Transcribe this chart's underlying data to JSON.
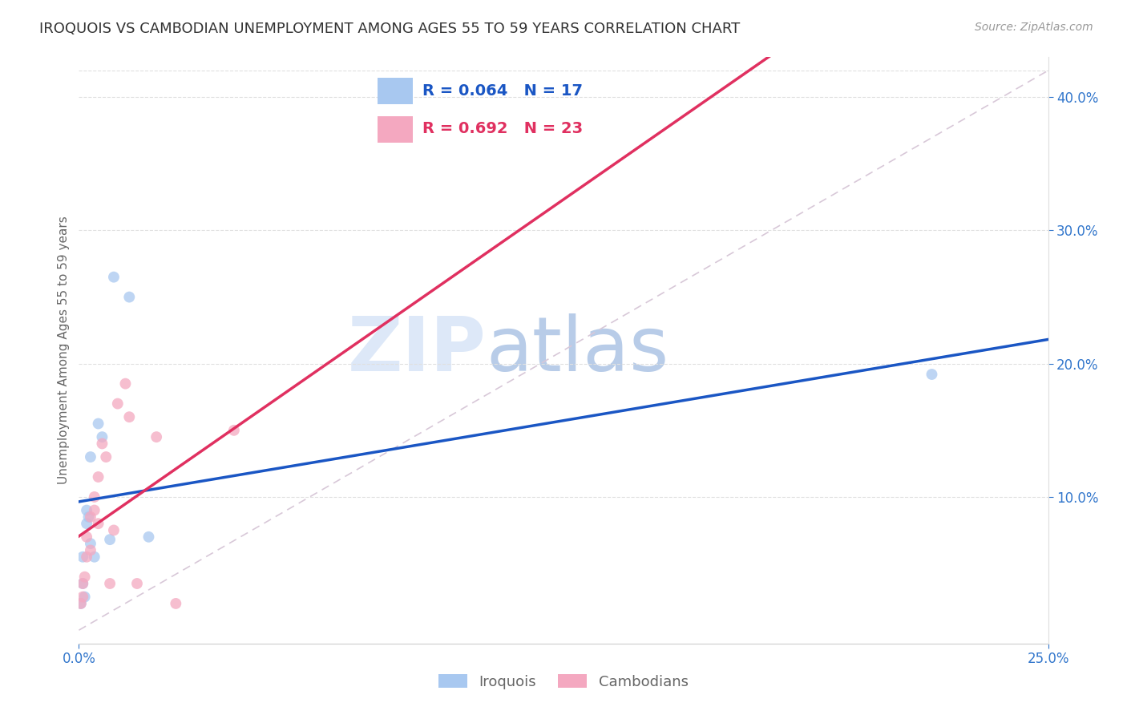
{
  "title": "IROQUOIS VS CAMBODIAN UNEMPLOYMENT AMONG AGES 55 TO 59 YEARS CORRELATION CHART",
  "source": "Source: ZipAtlas.com",
  "ylabel": "Unemployment Among Ages 55 to 59 years",
  "iroquois_R": 0.064,
  "iroquois_N": 17,
  "cambodian_R": 0.692,
  "cambodian_N": 23,
  "iroquois_color": "#a8c8f0",
  "cambodian_color": "#f4a8c0",
  "iroquois_line_color": "#1a56c4",
  "cambodian_line_color": "#e03060",
  "ref_line_color": "#d8c8d8",
  "xlim": [
    0.0,
    0.25
  ],
  "ylim": [
    -0.01,
    0.43
  ],
  "xticks": [
    0.0,
    0.25
  ],
  "yticks": [
    0.1,
    0.2,
    0.3,
    0.4
  ],
  "iroquois_x": [
    0.0005,
    0.001,
    0.001,
    0.0015,
    0.002,
    0.002,
    0.0025,
    0.003,
    0.003,
    0.004,
    0.005,
    0.006,
    0.008,
    0.009,
    0.013,
    0.018,
    0.22
  ],
  "iroquois_y": [
    0.02,
    0.035,
    0.055,
    0.025,
    0.08,
    0.09,
    0.085,
    0.065,
    0.13,
    0.055,
    0.155,
    0.145,
    0.068,
    0.265,
    0.25,
    0.07,
    0.192
  ],
  "cambodian_x": [
    0.0005,
    0.001,
    0.001,
    0.0015,
    0.002,
    0.002,
    0.003,
    0.003,
    0.004,
    0.004,
    0.005,
    0.005,
    0.006,
    0.007,
    0.008,
    0.009,
    0.01,
    0.012,
    0.013,
    0.015,
    0.02,
    0.025,
    0.04
  ],
  "cambodian_y": [
    0.02,
    0.025,
    0.035,
    0.04,
    0.055,
    0.07,
    0.06,
    0.085,
    0.09,
    0.1,
    0.08,
    0.115,
    0.14,
    0.13,
    0.035,
    0.075,
    0.17,
    0.185,
    0.16,
    0.035,
    0.145,
    0.02,
    0.15
  ],
  "watermark_zip": "ZIP",
  "watermark_atlas": "atlas",
  "watermark_color_zip": "#dde8f8",
  "watermark_color_atlas": "#b8cce8",
  "background_color": "#ffffff",
  "grid_color": "#e0e0e0",
  "title_color": "#333333",
  "axis_label_color": "#666666",
  "tick_label_color": "#3377cc",
  "legend_fontsize": 14,
  "title_fontsize": 13,
  "ylabel_fontsize": 11,
  "marker_size": 100
}
